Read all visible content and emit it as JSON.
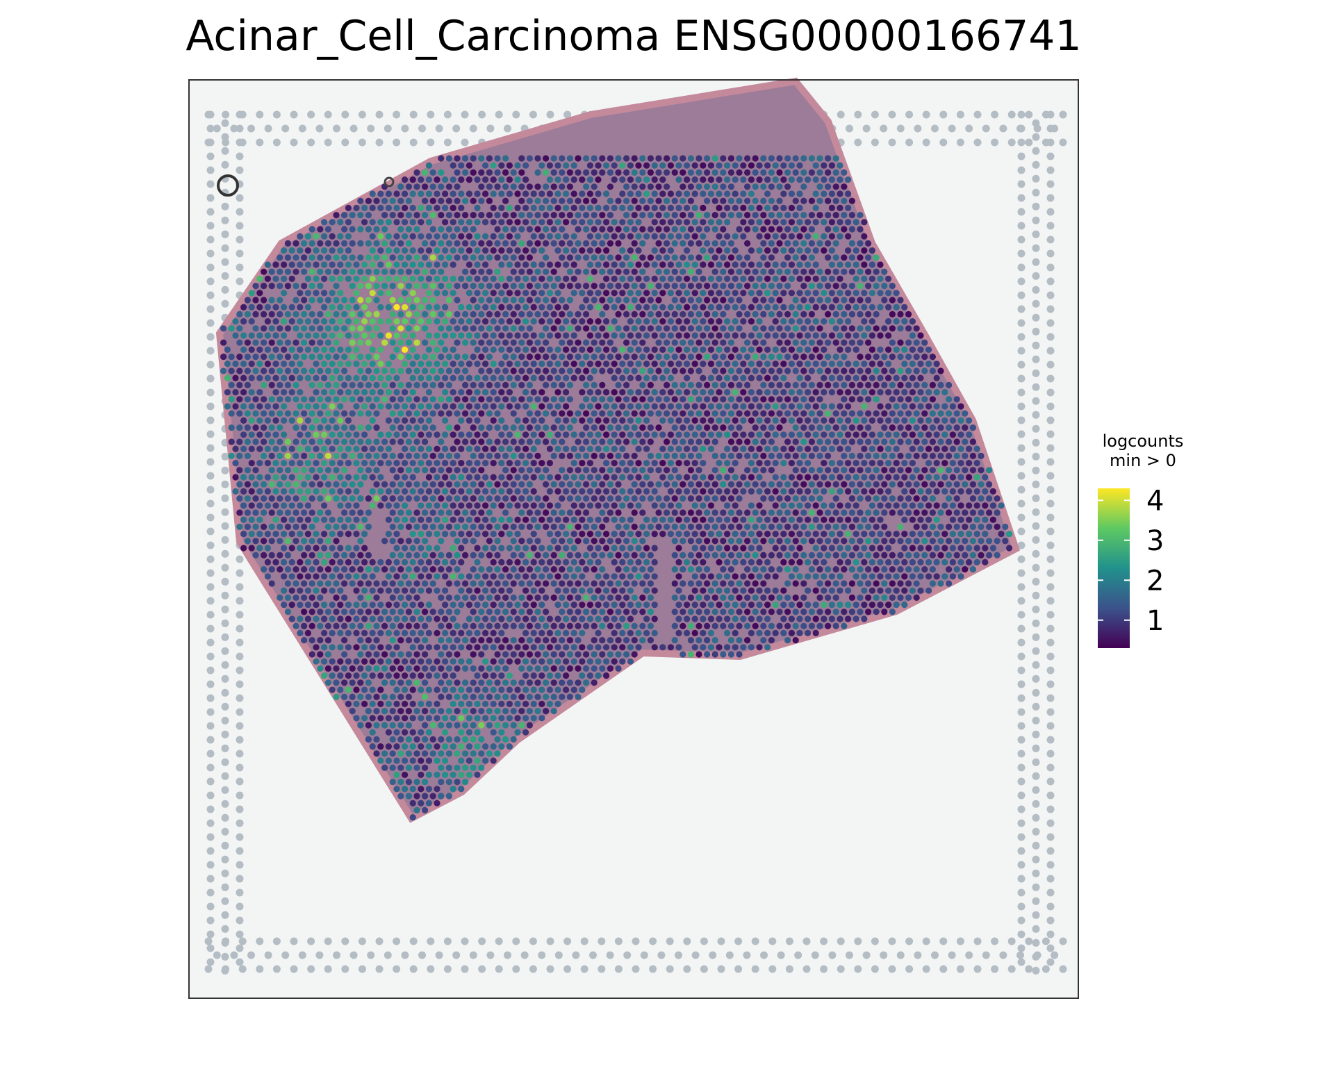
{
  "chart_data": {
    "type": "scatter",
    "title": "Acinar_Cell_Carcinoma ENSG00000166741",
    "legend": {
      "title_line1": "logcounts",
      "title_line2": "min > 0",
      "ticks": [
        1,
        2,
        3,
        4
      ],
      "range": [
        0.3,
        4.3
      ],
      "placement": "right",
      "colormap": [
        "#440154",
        "#3b528b",
        "#21918c",
        "#5ec962",
        "#fde725"
      ]
    },
    "background": "H&E tissue section image with fiducial frame",
    "colors": {
      "tissue": "#9c7c98",
      "tissue_edge": "#c48a9c",
      "slide": "#f3f5f5",
      "fiducial": "#b4bcc4"
    }
  }
}
